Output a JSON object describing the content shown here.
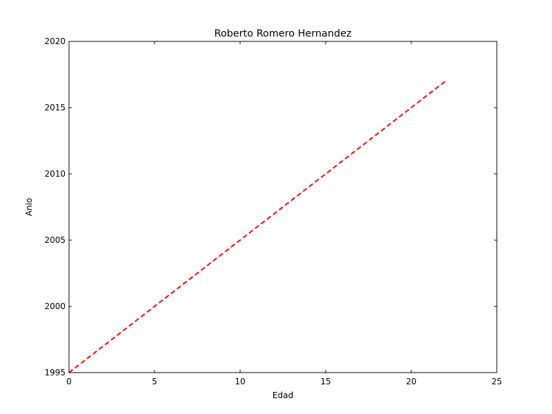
{
  "chart_data": {
    "type": "line",
    "title": "Roberto Romero Hernandez",
    "xlabel": "Edad",
    "ylabel": "Anio",
    "xlim": [
      0,
      25
    ],
    "ylim": [
      1995,
      2020
    ],
    "xticks": [
      0,
      5,
      10,
      15,
      20,
      25
    ],
    "yticks": [
      1995,
      2000,
      2005,
      2010,
      2015,
      2020
    ],
    "xtick_labels": [
      "0",
      "5",
      "10",
      "15",
      "20",
      "25"
    ],
    "ytick_labels": [
      "1995",
      "2000",
      "2005",
      "2010",
      "2015",
      "2020"
    ],
    "grid": false,
    "series": [
      {
        "color": "#ff0000",
        "line_style": "dashed",
        "x": [
          0,
          22
        ],
        "y": [
          1995,
          2017
        ]
      }
    ]
  }
}
